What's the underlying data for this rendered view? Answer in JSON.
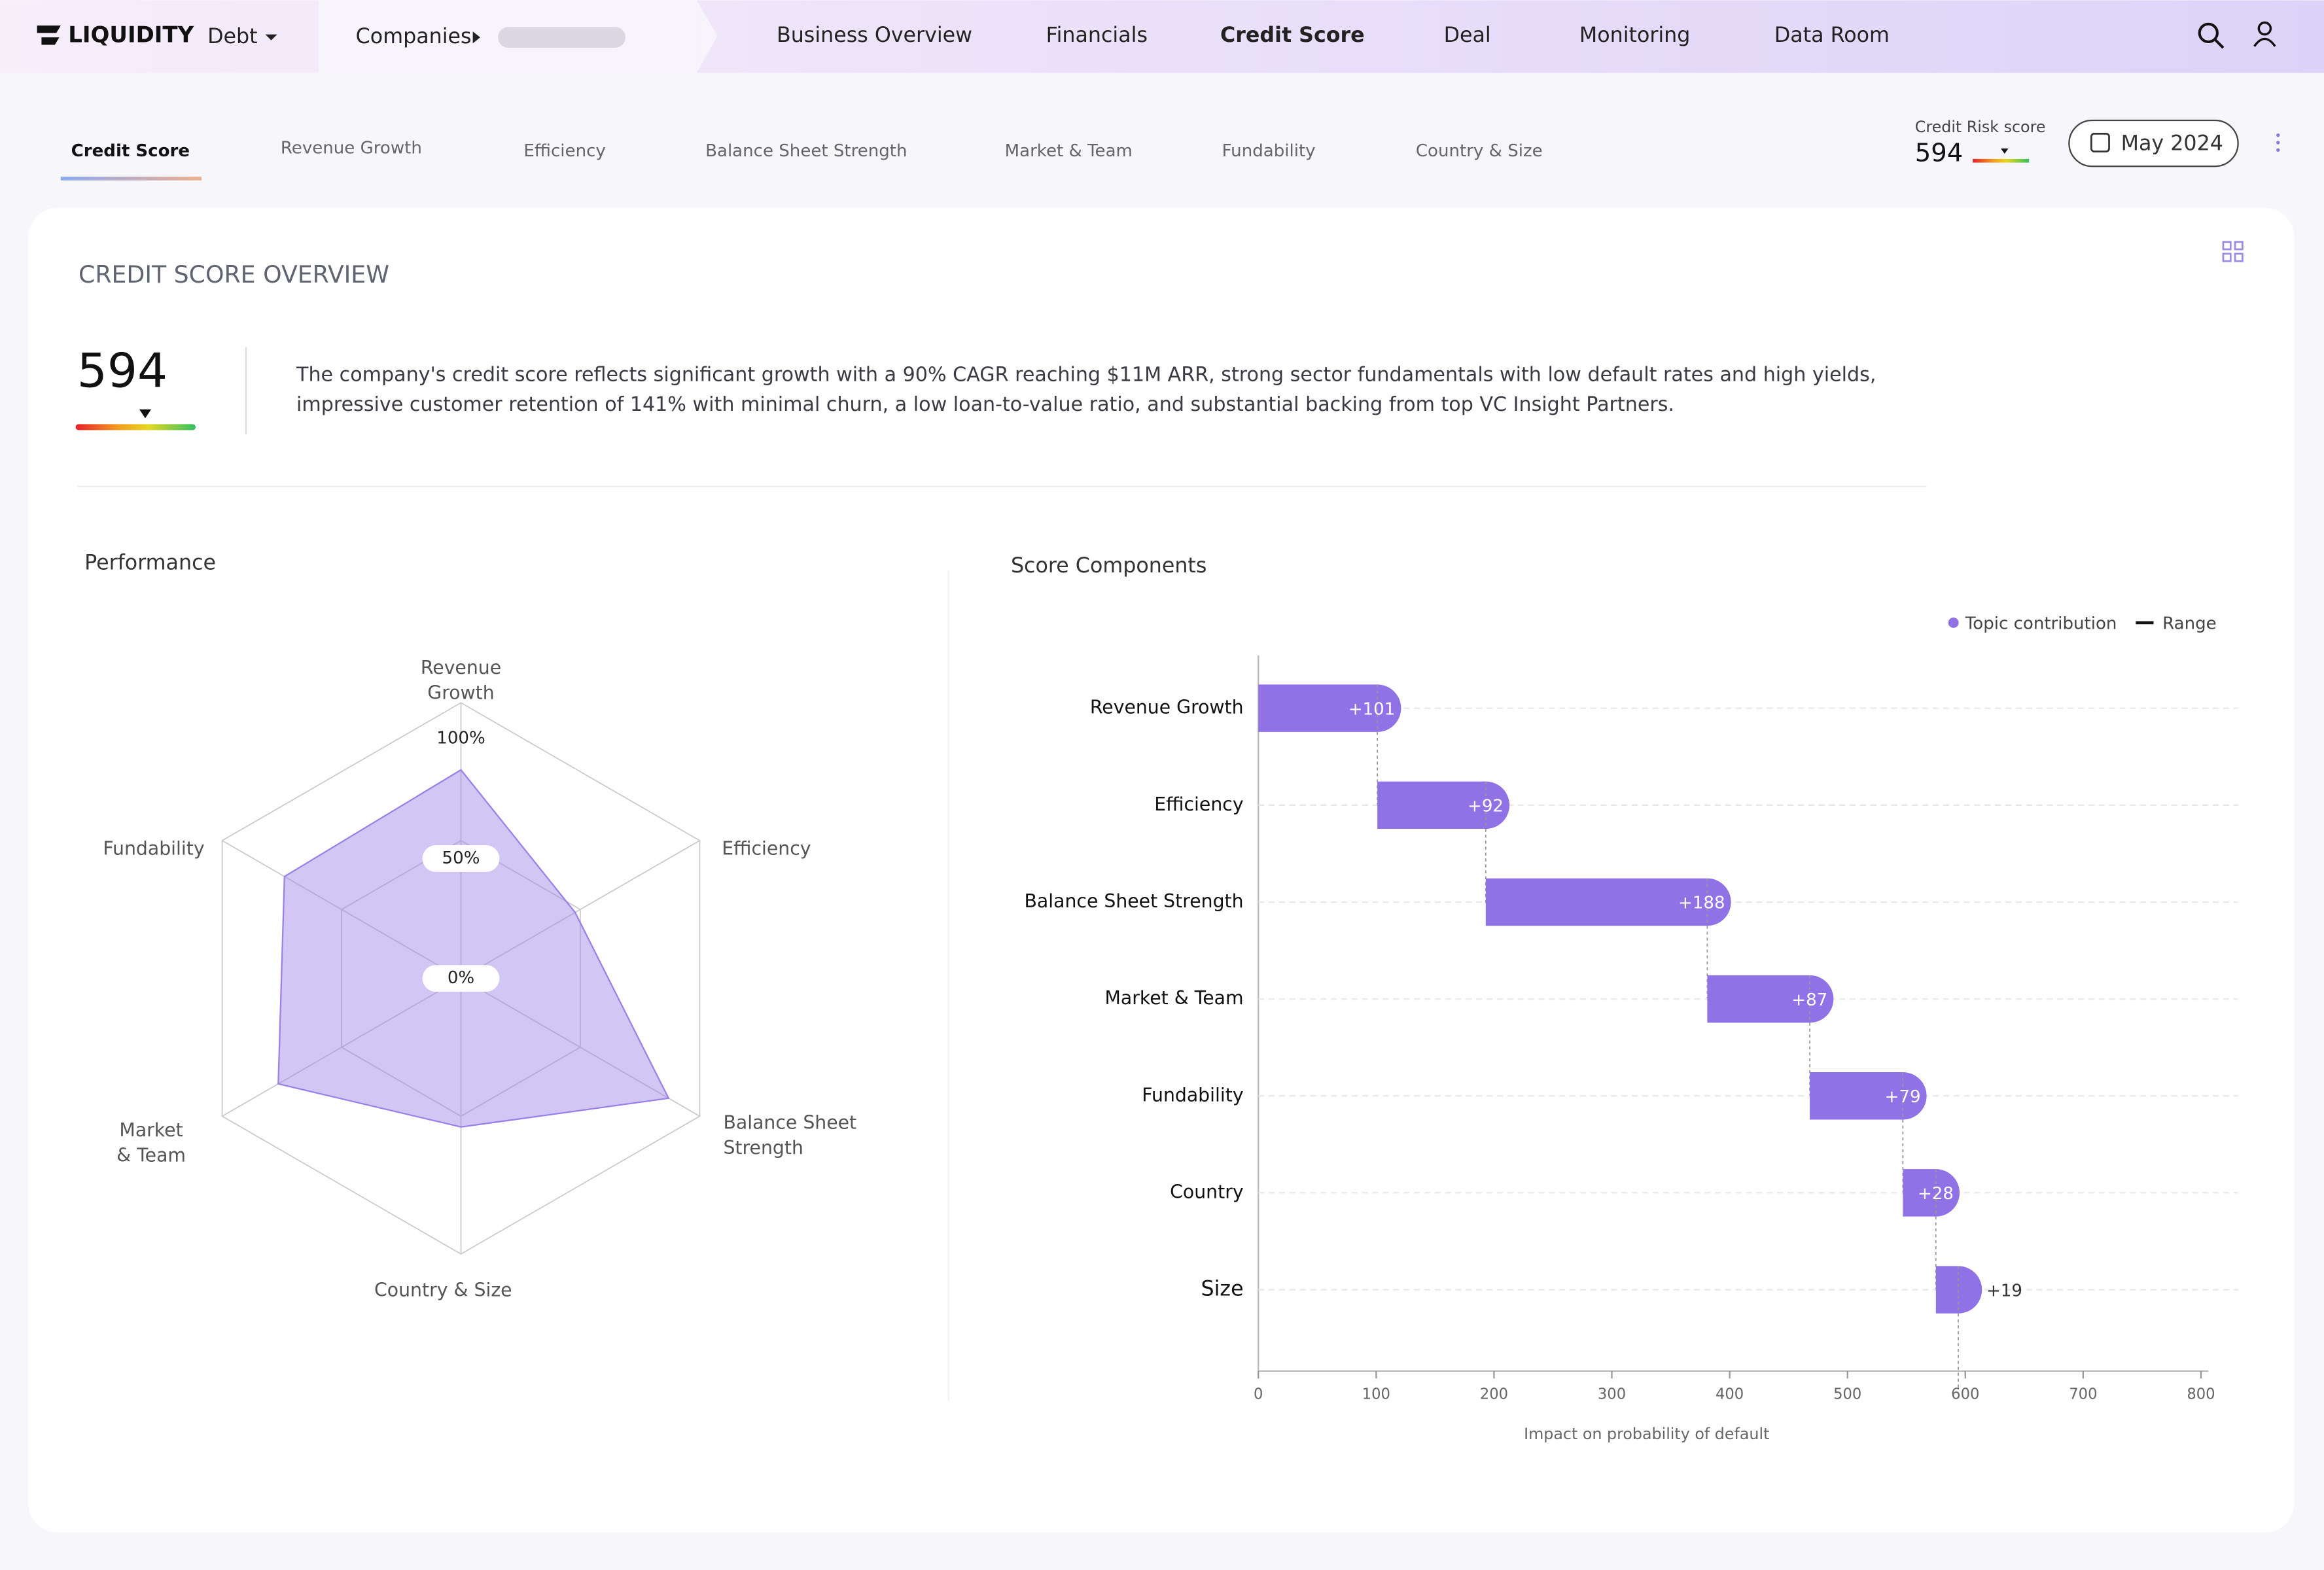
{
  "nav": {
    "logo": "LIQUIDITY",
    "product": "Debt",
    "companies": "Companies",
    "items": [
      "Business Overview",
      "Financials",
      "Credit Score",
      "Deal",
      "Monitoring",
      "Data Room"
    ]
  },
  "tabs": [
    "Credit Score",
    "Revenue Growth",
    "Efficiency",
    "Balance Sheet Strength",
    "Market & Team",
    "Fundability",
    "Country & Size"
  ],
  "risk": {
    "label": "Credit Risk score",
    "score": "594",
    "date": "May 2024"
  },
  "overview": {
    "title": "CREDIT SCORE OVERVIEW",
    "score": "594",
    "description": "The company's credit score reflects significant growth with a 90% CAGR reaching $11M ARR, strong sector fundamentals with low default rates and high yields, impressive customer retention of 141% with minimal churn, a low loan-to-value ratio, and substantial backing from top VC Insight Partners."
  },
  "chart_data": [
    {
      "type": "radar",
      "title": "Performance",
      "categories": [
        "Revenue Growth",
        "Efficiency",
        "Balance Sheet Strength",
        "Country & Size",
        "Market & Team",
        "Fundability"
      ],
      "values": [
        87,
        55,
        100,
        62,
        88,
        85
      ],
      "color": "#9b80e8",
      "rlim": [
        0,
        115
      ],
      "rticks": [
        {
          "value": 0,
          "label": "0%"
        },
        {
          "value": 50,
          "label": "50%"
        },
        {
          "value": 100,
          "label": "100%"
        }
      ]
    },
    {
      "type": "waterfall",
      "title": "Score Components",
      "categories": [
        "Revenue Growth",
        "Efficiency",
        "Balance Sheet Strength",
        "Market & Team",
        "Fundability",
        "Country",
        "Size"
      ],
      "values": [
        101,
        92,
        188,
        87,
        79,
        28,
        19
      ],
      "value_labels": [
        "+101",
        "+92",
        "+188",
        "+87",
        "+79",
        "+28",
        "+19"
      ],
      "color": "#9171e6",
      "legend": [
        "Topic contribution",
        "Range"
      ],
      "xlabel": "Impact on probability of default",
      "xlim": [
        0,
        800
      ],
      "xticks": [
        0,
        100,
        200,
        300,
        400,
        500,
        600,
        700,
        800
      ]
    }
  ]
}
